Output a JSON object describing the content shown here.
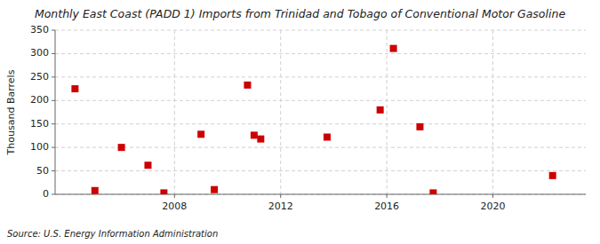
{
  "chart_data": {
    "type": "scatter",
    "title": "Monthly East Coast (PADD 1) Imports from Trinidad and Tobago of Conventional Motor Gasoline",
    "ylabel": "Thousand Barrels",
    "source": "Source: U.S. Energy Information Administration",
    "x": [
      2004.25,
      2005.0,
      2006.0,
      2007.0,
      2007.6,
      2009.0,
      2009.5,
      2010.75,
      2011.0,
      2011.25,
      2013.75,
      2015.75,
      2016.25,
      2017.25,
      2017.75,
      2022.25
    ],
    "values": [
      225,
      8,
      100,
      62,
      3,
      128,
      10,
      233,
      126,
      118,
      122,
      180,
      311,
      144,
      3,
      40
    ],
    "color": "#cc0000",
    "marker": "square",
    "xlim": [
      2003.5,
      2023.5
    ],
    "xticks": [
      2008,
      2012,
      2016,
      2020
    ],
    "ylim": [
      0,
      350
    ],
    "yticks": [
      0,
      50,
      100,
      150,
      200,
      250,
      300,
      350
    ],
    "grid": true
  }
}
